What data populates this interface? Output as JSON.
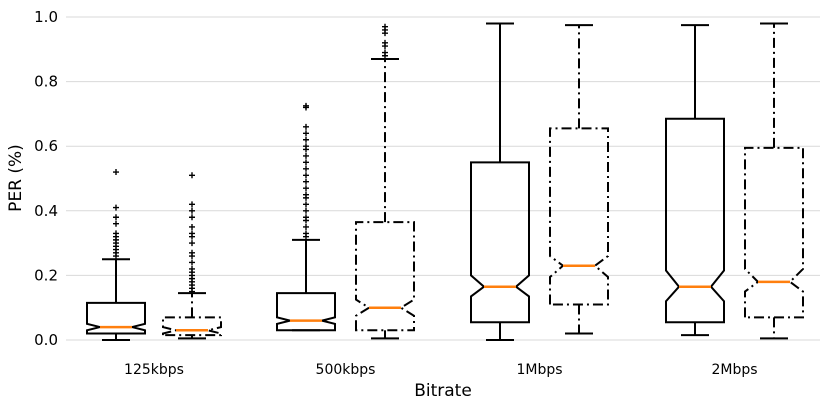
{
  "chart_data": {
    "type": "boxplot",
    "notched": true,
    "xlabel": "Bitrate",
    "ylabel": "PER (%)",
    "ylim": [
      0.0,
      1.0
    ],
    "yticks": [
      0.0,
      0.2,
      0.4,
      0.6,
      0.8,
      1.0
    ],
    "ytick_labels": [
      "0.0",
      "0.2",
      "0.4",
      "0.6",
      "0.8",
      "1.0"
    ],
    "grid": "horizontal",
    "categories": [
      "125kbps",
      "500kbps",
      "1Mbps",
      "2Mbps"
    ],
    "series": [
      {
        "line_style": "solid",
        "boxes": [
          {
            "whisker_low": 0.0,
            "q1": 0.02,
            "median": 0.04,
            "q3": 0.115,
            "whisker_high": 0.25,
            "notch_low": 0.03,
            "notch_high": 0.05,
            "fliers": [
              0.26,
              0.27,
              0.28,
              0.29,
              0.3,
              0.31,
              0.32,
              0.33,
              0.36,
              0.38,
              0.41,
              0.52
            ]
          },
          {
            "whisker_low": 0.03,
            "q1": 0.03,
            "median": 0.06,
            "q3": 0.145,
            "whisker_high": 0.31,
            "notch_low": 0.05,
            "notch_high": 0.07,
            "fliers": [
              0.32,
              0.33,
              0.35,
              0.37,
              0.38,
              0.4,
              0.42,
              0.44,
              0.45,
              0.47,
              0.49,
              0.51,
              0.53,
              0.55,
              0.57,
              0.59,
              0.6,
              0.62,
              0.64,
              0.66,
              0.72,
              0.725
            ]
          },
          {
            "whisker_low": 0.0,
            "q1": 0.055,
            "median": 0.165,
            "q3": 0.55,
            "whisker_high": 0.98,
            "notch_low": 0.135,
            "notch_high": 0.2,
            "fliers": []
          },
          {
            "whisker_low": 0.015,
            "q1": 0.055,
            "median": 0.165,
            "q3": 0.685,
            "whisker_high": 0.975,
            "notch_low": 0.12,
            "notch_high": 0.215,
            "fliers": []
          }
        ]
      },
      {
        "line_style": "dashdot",
        "boxes": [
          {
            "whisker_low": 0.005,
            "q1": 0.015,
            "median": 0.03,
            "q3": 0.07,
            "whisker_high": 0.145,
            "notch_low": 0.02,
            "notch_high": 0.04,
            "fliers": [
              0.15,
              0.16,
              0.17,
              0.18,
              0.19,
              0.2,
              0.21,
              0.22,
              0.24,
              0.26,
              0.27,
              0.3,
              0.32,
              0.33,
              0.35,
              0.38,
              0.4,
              0.42,
              0.51
            ]
          },
          {
            "whisker_low": 0.005,
            "q1": 0.03,
            "median": 0.1,
            "q3": 0.365,
            "whisker_high": 0.87,
            "notch_low": 0.075,
            "notch_high": 0.125,
            "fliers": [
              0.88,
              0.89,
              0.91,
              0.92,
              0.95,
              0.96,
              0.97
            ]
          },
          {
            "whisker_low": 0.02,
            "q1": 0.11,
            "median": 0.23,
            "q3": 0.655,
            "whisker_high": 0.975,
            "notch_low": 0.195,
            "notch_high": 0.26,
            "fliers": []
          },
          {
            "whisker_low": 0.005,
            "q1": 0.07,
            "median": 0.18,
            "q3": 0.595,
            "whisker_high": 0.98,
            "notch_low": 0.15,
            "notch_high": 0.22,
            "fliers": []
          }
        ]
      }
    ],
    "colors": {
      "box": "#000000",
      "median": "#ff7f0e",
      "grid": "#d9d9d9",
      "flier": "#000000"
    }
  }
}
